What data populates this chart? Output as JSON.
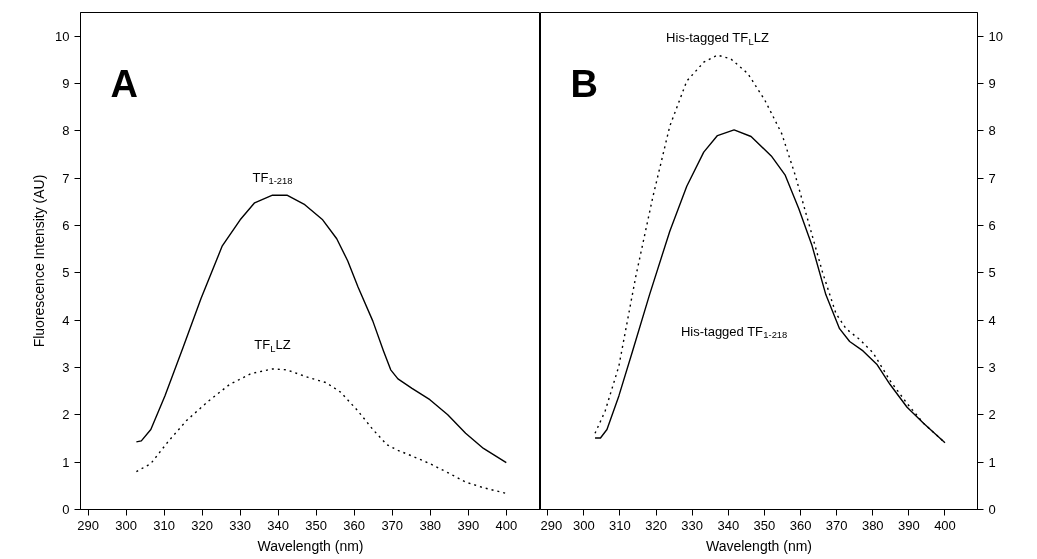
{
  "chart_data": [
    {
      "type": "line",
      "xlabel": "Wavelength (nm)",
      "ylabel": "Fluorescence Intensity (AU)",
      "xlim": [
        288,
        409
      ],
      "ylim": [
        0,
        10.5
      ],
      "xticks": [
        290,
        300,
        310,
        320,
        330,
        340,
        350,
        360,
        370,
        380,
        390,
        400
      ],
      "yticks": [
        0,
        1,
        2,
        3,
        4,
        5,
        6,
        7,
        8,
        9,
        10
      ],
      "grid": false,
      "legend": false,
      "annotations": [
        "A"
      ],
      "series": [
        {
          "name": "TF$_{1-218}$",
          "color": "#000000",
          "line_style": "solid",
          "x": [
            302.7,
            304,
            306.5,
            310.2,
            315,
            319.7,
            325.3,
            330,
            333.8,
            338.5,
            342.3,
            347,
            351.7,
            355.4,
            358.3,
            361,
            364.9,
            367.7,
            369.6,
            371.5,
            375.2,
            379.9,
            384.6,
            389.3,
            394,
            400
          ],
          "values": [
            1.43,
            1.45,
            1.69,
            2.4,
            3.43,
            4.46,
            5.57,
            6.12,
            6.48,
            6.64,
            6.64,
            6.44,
            6.12,
            5.72,
            5.25,
            4.7,
            3.98,
            3.35,
            2.95,
            2.76,
            2.56,
            2.32,
            2.0,
            1.61,
            1.29,
            0.99
          ]
        },
        {
          "name": "TF$_{L}$LZ",
          "color": "#000000",
          "line_style": "dotted",
          "x": [
            302.7,
            306.5,
            311.2,
            315.9,
            321.5,
            327.2,
            332.8,
            338.5,
            342.3,
            347.9,
            352.6,
            356.4,
            361,
            364.9,
            368.6,
            371.5,
            375.2,
            379.9,
            384.6,
            389.3,
            394,
            400
          ],
          "values": [
            0.8,
            0.97,
            1.45,
            1.88,
            2.28,
            2.64,
            2.87,
            2.97,
            2.95,
            2.79,
            2.68,
            2.48,
            2.08,
            1.69,
            1.37,
            1.25,
            1.13,
            0.97,
            0.78,
            0.58,
            0.46,
            0.34
          ]
        }
      ]
    },
    {
      "type": "line",
      "xlabel": "Wavelength (nm)",
      "xlim": [
        288,
        409
      ],
      "y2lim": [
        0,
        10.5
      ],
      "xticks": [
        290,
        300,
        310,
        320,
        330,
        340,
        350,
        360,
        370,
        380,
        390,
        400
      ],
      "y2ticks": [
        0,
        1,
        2,
        3,
        4,
        5,
        6,
        7,
        8,
        9,
        10
      ],
      "grid": false,
      "legend": false,
      "annotations": [
        "B"
      ],
      "series": [
        {
          "name": "His-tagged TF$_{1-218}$",
          "color": "#000000",
          "line_style": "solid",
          "axis": "y2",
          "x": [
            303.1,
            304.6,
            306.4,
            309.7,
            313.5,
            318.2,
            323.8,
            328.5,
            333.2,
            337,
            341.6,
            346.3,
            351.9,
            355.7,
            359.5,
            363.2,
            367,
            370.8,
            373.6,
            377.3,
            381.1,
            384.8,
            389.5,
            394.2,
            400
          ],
          "values": [
            1.51,
            1.51,
            1.69,
            2.4,
            3.35,
            4.54,
            5.88,
            6.83,
            7.55,
            7.9,
            8.02,
            7.88,
            7.47,
            7.07,
            6.36,
            5.57,
            4.54,
            3.82,
            3.55,
            3.35,
            3.07,
            2.64,
            2.16,
            1.81,
            1.41
          ]
        },
        {
          "name": "His-tagged TF$_{L}$LZ",
          "color": "#000000",
          "line_style": "dotted",
          "axis": "y2",
          "x": [
            303.1,
            305.9,
            309.7,
            314.4,
            319.1,
            323.8,
            328.5,
            333.2,
            337,
            340.7,
            345.4,
            350.1,
            354.8,
            358.5,
            362.3,
            366.1,
            369.8,
            372.6,
            376.4,
            380.1,
            384.8,
            389.5,
            394.2,
            400
          ],
          "values": [
            1.61,
            2.08,
            3.03,
            4.93,
            6.6,
            8.1,
            9.05,
            9.45,
            9.6,
            9.52,
            9.21,
            8.65,
            7.94,
            7.07,
            6.04,
            5.01,
            4.14,
            3.82,
            3.59,
            3.31,
            2.72,
            2.24,
            1.81,
            1.41
          ]
        }
      ]
    }
  ]
}
